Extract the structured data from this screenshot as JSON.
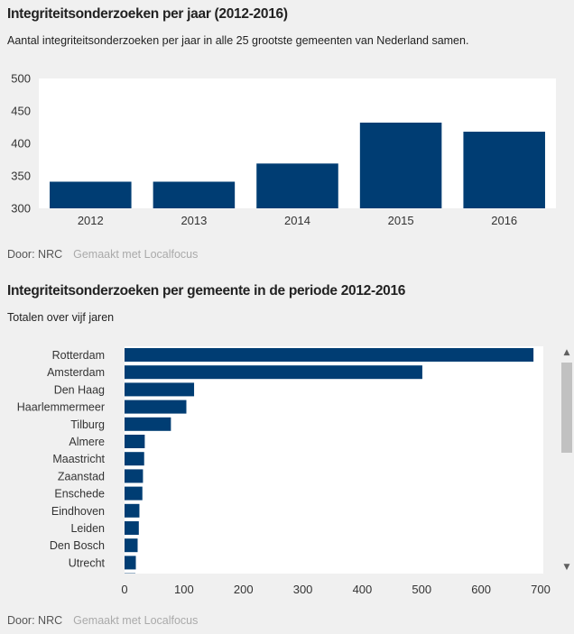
{
  "chart1": {
    "title": "Integriteitsonderzoeken per jaar (2012-2016)",
    "subtitle": "Aantal integriteitsonderzoeken per jaar in alle 25 grootste gemeenten van Nederland samen.",
    "credit_by": "Door: NRC",
    "credit_made": "Gemaakt met Localfocus"
  },
  "chart2": {
    "title": "Integriteitsonderzoeken per gemeente in de periode 2012-2016",
    "subtitle": "Totalen over vijf jaren",
    "credit_by": "Door: NRC",
    "credit_made": "Gemaakt met Localfocus"
  },
  "colors": {
    "bar": "#003d73",
    "plot_bg": "#ffffff",
    "page_bg": "#f0f0f0"
  },
  "chart_data": [
    {
      "type": "bar",
      "orientation": "vertical",
      "title": "Integriteitsonderzoeken per jaar (2012-2016)",
      "categories": [
        "2012",
        "2013",
        "2014",
        "2015",
        "2016"
      ],
      "values": [
        341,
        341,
        369,
        432,
        418
      ],
      "ylim": [
        300,
        500
      ],
      "yticks": [
        300,
        350,
        400,
        450,
        500
      ],
      "grid": false
    },
    {
      "type": "bar",
      "orientation": "horizontal",
      "title": "Integriteitsonderzoeken per gemeente in de periode 2012-2016",
      "categories": [
        "Rotterdam",
        "Amsterdam",
        "Den Haag",
        "Haarlemmermeer",
        "Tilburg",
        "Almere",
        "Maastricht",
        "Zaanstad",
        "Enschede",
        "Eindhoven",
        "Leiden",
        "Den Bosch",
        "Utrecht"
      ],
      "values": [
        688,
        501,
        117,
        104,
        78,
        34,
        33,
        31,
        30,
        25,
        24,
        22,
        19
      ],
      "xlim": [
        0,
        700
      ],
      "xticks": [
        0,
        100,
        200,
        300,
        400,
        500,
        600,
        700
      ],
      "grid": false
    }
  ]
}
